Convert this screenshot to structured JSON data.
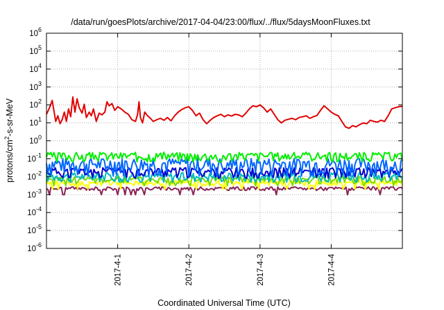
{
  "chart_data": {
    "type": "line",
    "title": "/data/run/goesPlots/archive/2017-04-04/23:00/flux/../flux/5daysMoonFluxes.txt",
    "xlabel": "Coordinated Universal Time (UTC)",
    "ylabel_base": "protons/cm",
    "ylabel_sup": "2",
    "ylabel_rest": "-s-sr-MeV",
    "xlim": [
      0,
      5
    ],
    "x_ticks": [
      {
        "x": 1,
        "label": "2017-4-1"
      },
      {
        "x": 2,
        "label": "2017-4-2"
      },
      {
        "x": 3,
        "label": "2017-4-3"
      },
      {
        "x": 4,
        "label": "2017-4-4"
      }
    ],
    "y_scale": "log",
    "ylim": [
      -6,
      6
    ],
    "y_tick_exponents": [
      -6,
      -5,
      -4,
      -3,
      -2,
      -1,
      0,
      1,
      2,
      3,
      4,
      5,
      6
    ],
    "y_tick_base": "10",
    "grid": true,
    "series": [
      {
        "color": "#e00000",
        "values": [
          [
            0.0,
            30
          ],
          [
            0.05,
            80
          ],
          [
            0.08,
            180
          ],
          [
            0.1,
            60
          ],
          [
            0.13,
            12
          ],
          [
            0.16,
            25
          ],
          [
            0.19,
            9
          ],
          [
            0.22,
            15
          ],
          [
            0.25,
            40
          ],
          [
            0.28,
            12
          ],
          [
            0.31,
            60
          ],
          [
            0.34,
            22
          ],
          [
            0.37,
            280
          ],
          [
            0.4,
            40
          ],
          [
            0.43,
            220
          ],
          [
            0.46,
            70
          ],
          [
            0.5,
            35
          ],
          [
            0.53,
            110
          ],
          [
            0.56,
            20
          ],
          [
            0.6,
            40
          ],
          [
            0.63,
            25
          ],
          [
            0.66,
            60
          ],
          [
            0.7,
            12
          ],
          [
            0.74,
            35
          ],
          [
            0.78,
            28
          ],
          [
            0.82,
            40
          ],
          [
            0.85,
            150
          ],
          [
            0.88,
            90
          ],
          [
            0.92,
            120
          ],
          [
            0.96,
            50
          ],
          [
            1.0,
            80
          ],
          [
            1.05,
            60
          ],
          [
            1.1,
            40
          ],
          [
            1.15,
            30
          ],
          [
            1.2,
            15
          ],
          [
            1.25,
            12
          ],
          [
            1.28,
            30
          ],
          [
            1.3,
            150
          ],
          [
            1.32,
            20
          ],
          [
            1.35,
            10
          ],
          [
            1.38,
            40
          ],
          [
            1.42,
            25
          ],
          [
            1.46,
            18
          ],
          [
            1.5,
            12
          ],
          [
            1.55,
            15
          ],
          [
            1.6,
            18
          ],
          [
            1.65,
            14
          ],
          [
            1.7,
            20
          ],
          [
            1.75,
            13
          ],
          [
            1.8,
            25
          ],
          [
            1.85,
            40
          ],
          [
            1.9,
            55
          ],
          [
            1.95,
            70
          ],
          [
            2.0,
            80
          ],
          [
            2.05,
            50
          ],
          [
            2.1,
            25
          ],
          [
            2.15,
            35
          ],
          [
            2.2,
            15
          ],
          [
            2.25,
            9
          ],
          [
            2.3,
            14
          ],
          [
            2.35,
            20
          ],
          [
            2.4,
            25
          ],
          [
            2.45,
            30
          ],
          [
            2.5,
            22
          ],
          [
            2.55,
            28
          ],
          [
            2.6,
            24
          ],
          [
            2.65,
            30
          ],
          [
            2.7,
            28
          ],
          [
            2.75,
            22
          ],
          [
            2.8,
            35
          ],
          [
            2.85,
            60
          ],
          [
            2.9,
            90
          ],
          [
            2.95,
            80
          ],
          [
            3.0,
            100
          ],
          [
            3.05,
            70
          ],
          [
            3.1,
            40
          ],
          [
            3.15,
            60
          ],
          [
            3.2,
            30
          ],
          [
            3.25,
            15
          ],
          [
            3.3,
            10
          ],
          [
            3.35,
            14
          ],
          [
            3.4,
            16
          ],
          [
            3.45,
            18
          ],
          [
            3.5,
            15
          ],
          [
            3.55,
            20
          ],
          [
            3.6,
            22
          ],
          [
            3.65,
            25
          ],
          [
            3.7,
            18
          ],
          [
            3.75,
            22
          ],
          [
            3.8,
            26
          ],
          [
            3.85,
            50
          ],
          [
            3.9,
            90
          ],
          [
            3.95,
            60
          ],
          [
            4.0,
            40
          ],
          [
            4.05,
            30
          ],
          [
            4.1,
            25
          ],
          [
            4.15,
            12
          ],
          [
            4.2,
            6
          ],
          [
            4.25,
            5
          ],
          [
            4.3,
            7
          ],
          [
            4.35,
            6
          ],
          [
            4.4,
            8
          ],
          [
            4.45,
            10
          ],
          [
            4.5,
            9
          ],
          [
            4.55,
            14
          ],
          [
            4.6,
            12
          ],
          [
            4.65,
            11
          ],
          [
            4.7,
            14
          ],
          [
            4.75,
            12
          ],
          [
            4.8,
            25
          ],
          [
            4.85,
            60
          ],
          [
            4.9,
            70
          ],
          [
            4.95,
            80
          ],
          [
            5.0,
            85
          ]
        ]
      },
      {
        "color": "#00ee00",
        "base": 0.15,
        "jitter": 0.08,
        "seed": 3
      },
      {
        "color": "#0066ff",
        "base": 0.055,
        "jitter": 0.05,
        "seed": 7
      },
      {
        "color": "#0000cc",
        "base": 0.02,
        "jitter": 0.012,
        "seed": 11
      },
      {
        "color": "#00bbbb",
        "base": 0.011,
        "jitter": 0.006,
        "seed": 17
      },
      {
        "color": "#77dd00",
        "base": 0.007,
        "jitter": 0.003,
        "seed": 23
      },
      {
        "color": "#ffff00",
        "base": 0.0045,
        "jitter": 0.0015,
        "seed": 29
      },
      {
        "color": "#882255",
        "base": 0.0022,
        "jitter": 0.0005,
        "seed": 31
      }
    ]
  }
}
